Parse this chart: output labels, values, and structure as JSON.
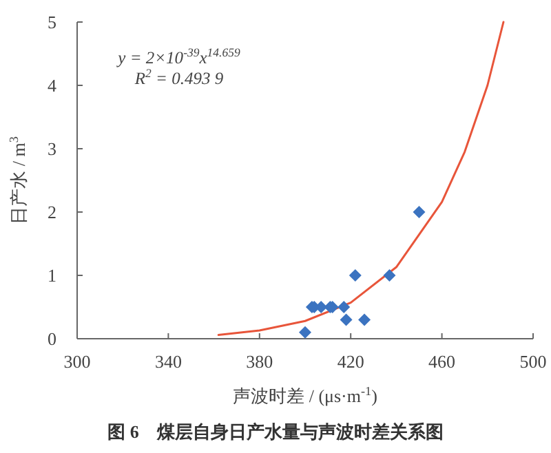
{
  "chart_data": {
    "type": "scatter",
    "title": "图 6　煤层自身日产水量与声波时差关系图",
    "xlabel": "声波时差 / (μs·m$^{-1}$)",
    "ylabel": "日产水 / m$^{3}$",
    "annotations": [
      "y = 2×10$^{-39}$x$^{14.659}$",
      "R$^{2}$ = 0.493 9"
    ],
    "xlim": [
      300,
      500
    ],
    "xticks": [
      300,
      340,
      380,
      420,
      460,
      500
    ],
    "ylim": [
      0,
      5
    ],
    "yticks": [
      0,
      1,
      2,
      3,
      4,
      5
    ],
    "marker": "diamond",
    "series": [
      {
        "color": "#3b73c0",
        "x": [
          400,
          403,
          404,
          407,
          411,
          412,
          417,
          418,
          422,
          426,
          437,
          450
        ],
        "values": [
          0.1,
          0.5,
          0.5,
          0.5,
          0.5,
          0.5,
          0.5,
          0.3,
          1.0,
          0.3,
          1.0,
          2.0
        ]
      },
      {
        "type": "line",
        "marker": "none",
        "color": "#e8553a",
        "x": [
          362,
          380,
          400,
          420,
          440,
          460,
          470,
          480,
          487
        ],
        "values": [
          0.06,
          0.13,
          0.28,
          0.57,
          1.13,
          2.16,
          2.95,
          4.0,
          5.0
        ]
      }
    ]
  }
}
